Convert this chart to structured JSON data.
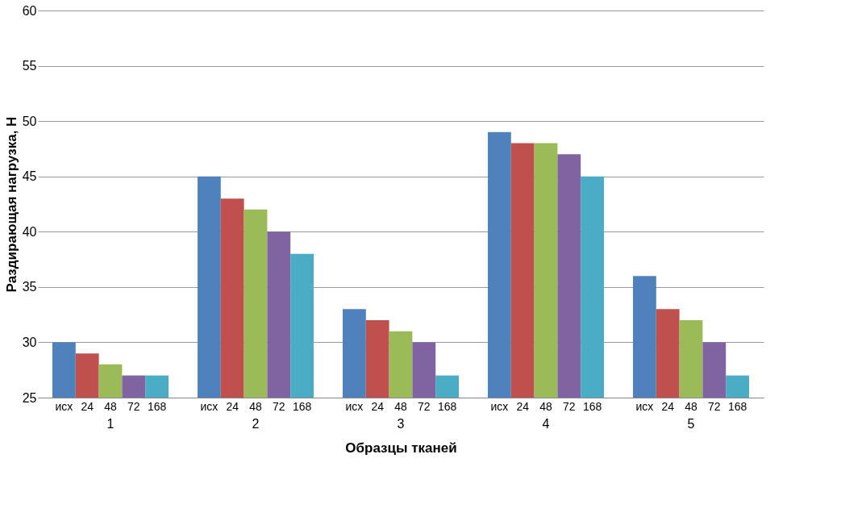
{
  "chart_data": {
    "type": "bar",
    "xlabel": "Образцы тканей",
    "ylabel": "Раздирающая нагрузка, Н",
    "categories": [
      "1",
      "2",
      "3",
      "4",
      "5"
    ],
    "series": [
      {
        "name": "исх",
        "color": "#4f81bd",
        "values": [
          30,
          45,
          33,
          49,
          36
        ]
      },
      {
        "name": "24",
        "color": "#c0504d",
        "values": [
          29,
          43,
          32,
          48,
          33
        ]
      },
      {
        "name": "48",
        "color": "#9bbb59",
        "values": [
          28,
          42,
          31,
          48,
          32
        ]
      },
      {
        "name": "72",
        "color": "#8064a2",
        "values": [
          27,
          40,
          30,
          47,
          30
        ]
      },
      {
        "name": "168",
        "color": "#4bacc6",
        "values": [
          27,
          38,
          27,
          45,
          27
        ]
      }
    ],
    "ylim": [
      25,
      60
    ],
    "yticks": [
      25,
      30,
      35,
      40,
      45,
      50,
      55,
      60
    ],
    "grid": "y",
    "legend": false
  }
}
